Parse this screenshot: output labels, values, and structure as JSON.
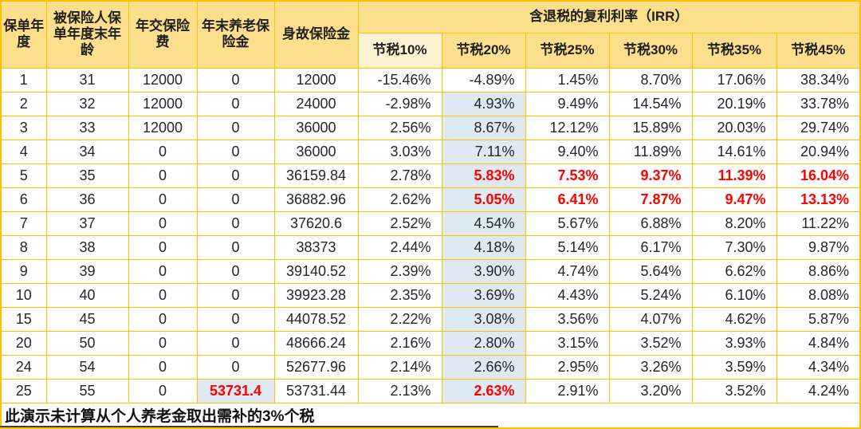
{
  "table": {
    "headers": {
      "col_policy_year": "保单年度",
      "col_age": "被保险人保单年度末年龄",
      "col_premium": "年交保险费",
      "col_pension": "年末养老保险金",
      "col_death_benefit": "身故保险金",
      "irr_group_title": "含退税的复利利率（IRR）",
      "irr_cols": [
        "节税10%",
        "节税20%",
        "节税25%",
        "节税30%",
        "节税35%",
        "节税45%"
      ]
    },
    "rows": [
      {
        "year": "1",
        "age": "31",
        "premium": "12000",
        "pension": "0",
        "death": "12000",
        "irr": [
          "-15.46%",
          "-4.89%",
          "1.45%",
          "8.70%",
          "17.06%",
          "38.34%"
        ],
        "red_irr": []
      },
      {
        "year": "2",
        "age": "32",
        "premium": "12000",
        "pension": "0",
        "death": "24000",
        "irr": [
          "-2.98%",
          "4.93%",
          "9.49%",
          "14.54%",
          "20.19%",
          "33.78%"
        ],
        "red_irr": []
      },
      {
        "year": "3",
        "age": "33",
        "premium": "12000",
        "pension": "0",
        "death": "36000",
        "irr": [
          "2.56%",
          "8.67%",
          "12.12%",
          "15.89%",
          "20.03%",
          "29.74%"
        ],
        "red_irr": []
      },
      {
        "year": "4",
        "age": "34",
        "premium": "0",
        "pension": "0",
        "death": "36000",
        "irr": [
          "3.03%",
          "7.11%",
          "9.40%",
          "11.89%",
          "14.61%",
          "20.94%"
        ],
        "red_irr": []
      },
      {
        "year": "5",
        "age": "35",
        "premium": "0",
        "pension": "0",
        "death": "36159.84",
        "irr": [
          "2.78%",
          "5.83%",
          "7.53%",
          "9.37%",
          "11.39%",
          "16.04%"
        ],
        "red_irr": [
          1,
          2,
          3,
          4,
          5
        ]
      },
      {
        "year": "6",
        "age": "36",
        "premium": "0",
        "pension": "0",
        "death": "36882.96",
        "irr": [
          "2.62%",
          "5.05%",
          "6.41%",
          "7.87%",
          "9.47%",
          "13.13%"
        ],
        "red_irr": [
          1,
          2,
          3,
          4,
          5
        ]
      },
      {
        "year": "7",
        "age": "37",
        "premium": "0",
        "pension": "0",
        "death": "37620.6",
        "irr": [
          "2.52%",
          "4.54%",
          "5.67%",
          "6.88%",
          "8.20%",
          "11.22%"
        ],
        "red_irr": []
      },
      {
        "year": "8",
        "age": "38",
        "premium": "0",
        "pension": "0",
        "death": "38373",
        "irr": [
          "2.44%",
          "4.18%",
          "5.14%",
          "6.17%",
          "7.30%",
          "9.87%"
        ],
        "red_irr": []
      },
      {
        "year": "9",
        "age": "39",
        "premium": "0",
        "pension": "0",
        "death": "39140.52",
        "irr": [
          "2.39%",
          "3.90%",
          "4.74%",
          "5.64%",
          "6.62%",
          "8.86%"
        ],
        "red_irr": []
      },
      {
        "year": "10",
        "age": "40",
        "premium": "0",
        "pension": "0",
        "death": "39923.28",
        "irr": [
          "2.35%",
          "3.69%",
          "4.43%",
          "5.24%",
          "6.10%",
          "8.08%"
        ],
        "red_irr": []
      },
      {
        "year": "15",
        "age": "45",
        "premium": "0",
        "pension": "0",
        "death": "44078.52",
        "irr": [
          "2.22%",
          "3.08%",
          "3.56%",
          "4.07%",
          "4.62%",
          "5.87%"
        ],
        "red_irr": []
      },
      {
        "year": "20",
        "age": "50",
        "premium": "0",
        "pension": "0",
        "death": "48666.24",
        "irr": [
          "2.16%",
          "2.80%",
          "3.15%",
          "3.52%",
          "3.93%",
          "4.84%"
        ],
        "red_irr": []
      },
      {
        "year": "24",
        "age": "54",
        "premium": "0",
        "pension": "0",
        "death": "52677.96",
        "irr": [
          "2.14%",
          "2.66%",
          "2.95%",
          "3.26%",
          "3.59%",
          "4.34%"
        ],
        "red_irr": []
      },
      {
        "year": "25",
        "age": "55",
        "premium": "0",
        "pension": "53731.4",
        "pension_red": true,
        "death": "53731.44",
        "irr": [
          "2.13%",
          "2.63%",
          "2.91%",
          "3.20%",
          "3.52%",
          "4.24%"
        ],
        "red_irr": [
          1
        ]
      }
    ],
    "styles": {
      "blue_irr_index": 1,
      "blue_from_row": 1
    },
    "footnote": "此演示未计算从个人养老金取出需补的3%个税"
  },
  "colors": {
    "header_bg": "#FBDF8D",
    "header_bg_light": "#FDF2D1",
    "grid_border": "#FFC000",
    "highlight_blue": "#DEE9F2",
    "highlight_red": "#FF0000"
  }
}
